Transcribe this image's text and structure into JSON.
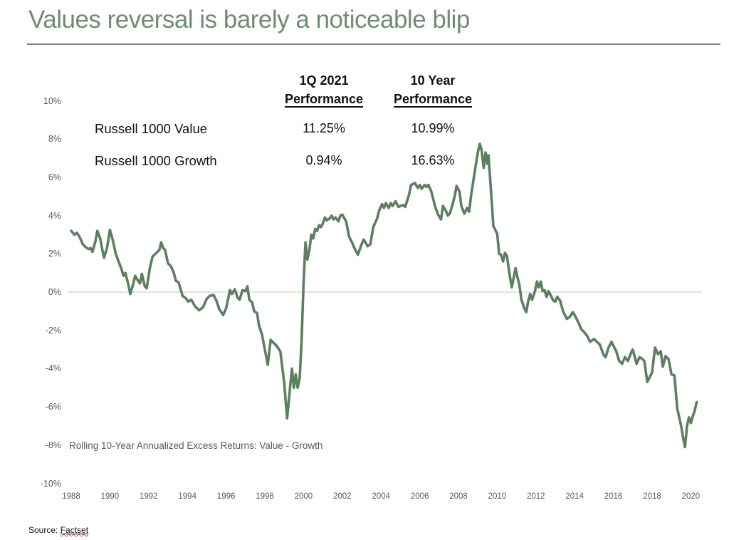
{
  "title": {
    "text": "Values reversal is barely a noticeable blip"
  },
  "comparison_table": {
    "columns": [
      {
        "line1": "1Q 2021",
        "line2": "Performance"
      },
      {
        "line1": "10 Year",
        "line2": "Performance"
      }
    ],
    "rows": [
      {
        "label": "Russell 1000 Value",
        "perf_1q2021": "11.25%",
        "perf_10yr": "10.99%"
      },
      {
        "label": "Russell 1000 Growth",
        "perf_1q2021": "0.94%",
        "perf_10yr": "16.63%"
      }
    ]
  },
  "chart_data": {
    "type": "line",
    "title": "",
    "annotation": "Rolling 10-Year Annualized Excess Returns:  Value - Growth",
    "xlabel": "",
    "ylabel": "",
    "x_ticks": [
      1988,
      1990,
      1992,
      1994,
      1996,
      1998,
      2000,
      2002,
      2004,
      2006,
      2008,
      2010,
      2012,
      2014,
      2016,
      2018,
      2020
    ],
    "y_tick_labels": [
      "10%",
      "8%",
      "6%",
      "4%",
      "2%",
      "0%",
      "-2%",
      "-4%",
      "-6%",
      "-8%",
      "-10%"
    ],
    "y_tick_values": [
      10,
      8,
      6,
      4,
      2,
      0,
      -2,
      -4,
      -6,
      -8,
      -10
    ],
    "ylim": [
      -10,
      10
    ],
    "xlim": [
      1988,
      2021
    ],
    "grid": "zero-line-only",
    "legend": "none",
    "series": [
      {
        "name": "Value - Growth rolling 10-year annualized excess return",
        "points": [
          [
            1988.0,
            3.2
          ],
          [
            1988.17,
            3.0
          ],
          [
            1988.3,
            3.1
          ],
          [
            1988.45,
            2.85
          ],
          [
            1988.6,
            2.5
          ],
          [
            1988.75,
            2.35
          ],
          [
            1988.9,
            2.25
          ],
          [
            1989.0,
            2.3
          ],
          [
            1989.1,
            2.1
          ],
          [
            1989.25,
            2.65
          ],
          [
            1989.35,
            3.2
          ],
          [
            1989.5,
            2.8
          ],
          [
            1989.6,
            2.25
          ],
          [
            1989.7,
            1.8
          ],
          [
            1989.85,
            2.3
          ],
          [
            1990.0,
            3.25
          ],
          [
            1990.15,
            2.7
          ],
          [
            1990.3,
            2.0
          ],
          [
            1990.45,
            1.6
          ],
          [
            1990.6,
            1.2
          ],
          [
            1990.7,
            0.85
          ],
          [
            1990.8,
            1.0
          ],
          [
            1990.95,
            0.4
          ],
          [
            1991.05,
            -0.1
          ],
          [
            1991.2,
            0.4
          ],
          [
            1991.3,
            0.85
          ],
          [
            1991.45,
            0.6
          ],
          [
            1991.55,
            0.45
          ],
          [
            1991.65,
            0.95
          ],
          [
            1991.8,
            0.3
          ],
          [
            1991.9,
            0.2
          ],
          [
            1992.05,
            1.2
          ],
          [
            1992.2,
            1.85
          ],
          [
            1992.4,
            2.05
          ],
          [
            1992.55,
            2.2
          ],
          [
            1992.65,
            2.6
          ],
          [
            1992.75,
            2.3
          ],
          [
            1992.85,
            2.2
          ],
          [
            1993.0,
            1.5
          ],
          [
            1993.15,
            1.35
          ],
          [
            1993.3,
            1.0
          ],
          [
            1993.4,
            0.6
          ],
          [
            1993.55,
            0.5
          ],
          [
            1993.75,
            -0.2
          ],
          [
            1993.9,
            -0.3
          ],
          [
            1994.05,
            -0.5
          ],
          [
            1994.2,
            -0.4
          ],
          [
            1994.4,
            -0.75
          ],
          [
            1994.6,
            -0.95
          ],
          [
            1994.8,
            -0.8
          ],
          [
            1995.0,
            -0.35
          ],
          [
            1995.15,
            -0.2
          ],
          [
            1995.35,
            -0.15
          ],
          [
            1995.5,
            -0.45
          ],
          [
            1995.65,
            -0.9
          ],
          [
            1995.85,
            -1.2
          ],
          [
            1996.0,
            -0.85
          ],
          [
            1996.2,
            0.1
          ],
          [
            1996.3,
            -0.1
          ],
          [
            1996.45,
            0.15
          ],
          [
            1996.6,
            -0.3
          ],
          [
            1996.7,
            -0.4
          ],
          [
            1996.85,
            0.1
          ],
          [
            1997.0,
            0.05
          ],
          [
            1997.1,
            0.3
          ],
          [
            1997.2,
            -0.4
          ],
          [
            1997.35,
            -0.55
          ],
          [
            1997.45,
            -1.0
          ],
          [
            1997.6,
            -1.1
          ],
          [
            1997.7,
            -1.75
          ],
          [
            1997.85,
            -2.2
          ],
          [
            1998.0,
            -3.0
          ],
          [
            1998.15,
            -3.8
          ],
          [
            1998.3,
            -2.5
          ],
          [
            1998.45,
            -2.65
          ],
          [
            1998.6,
            -2.8
          ],
          [
            1998.8,
            -3.1
          ],
          [
            1999.0,
            -4.75
          ],
          [
            1999.15,
            -6.6
          ],
          [
            1999.3,
            -5.0
          ],
          [
            1999.4,
            -4.0
          ],
          [
            1999.5,
            -5.0
          ],
          [
            1999.6,
            -4.3
          ],
          [
            1999.7,
            -5.0
          ],
          [
            1999.8,
            -4.5
          ],
          [
            1999.9,
            -2.5
          ],
          [
            2000.0,
            0.5
          ],
          [
            2000.1,
            2.6
          ],
          [
            2000.2,
            1.7
          ],
          [
            2000.3,
            2.2
          ],
          [
            2000.4,
            3.0
          ],
          [
            2000.5,
            2.8
          ],
          [
            2000.6,
            3.3
          ],
          [
            2000.7,
            3.2
          ],
          [
            2000.8,
            3.5
          ],
          [
            2000.9,
            3.4
          ],
          [
            2001.0,
            3.6
          ],
          [
            2001.1,
            3.9
          ],
          [
            2001.2,
            3.75
          ],
          [
            2001.35,
            3.85
          ],
          [
            2001.45,
            4.0
          ],
          [
            2001.55,
            3.8
          ],
          [
            2001.65,
            3.9
          ],
          [
            2001.8,
            3.7
          ],
          [
            2001.9,
            4.0
          ],
          [
            2002.0,
            4.05
          ],
          [
            2002.2,
            3.7
          ],
          [
            2002.35,
            2.9
          ],
          [
            2002.5,
            2.6
          ],
          [
            2002.65,
            2.25
          ],
          [
            2002.8,
            1.95
          ],
          [
            2003.0,
            2.5
          ],
          [
            2003.1,
            2.75
          ],
          [
            2003.2,
            2.6
          ],
          [
            2003.3,
            2.4
          ],
          [
            2003.45,
            2.5
          ],
          [
            2003.6,
            3.4
          ],
          [
            2003.8,
            3.85
          ],
          [
            2003.9,
            4.25
          ],
          [
            2004.05,
            4.6
          ],
          [
            2004.15,
            4.4
          ],
          [
            2004.25,
            4.65
          ],
          [
            2004.4,
            4.4
          ],
          [
            2004.5,
            4.65
          ],
          [
            2004.6,
            4.5
          ],
          [
            2004.75,
            4.75
          ],
          [
            2004.9,
            4.45
          ],
          [
            2005.0,
            4.5
          ],
          [
            2005.15,
            4.55
          ],
          [
            2005.25,
            4.45
          ],
          [
            2005.45,
            5.1
          ],
          [
            2005.55,
            5.6
          ],
          [
            2005.75,
            5.7
          ],
          [
            2005.9,
            5.45
          ],
          [
            2006.0,
            5.6
          ],
          [
            2006.1,
            5.4
          ],
          [
            2006.25,
            5.6
          ],
          [
            2006.35,
            5.5
          ],
          [
            2006.45,
            5.6
          ],
          [
            2006.6,
            5.25
          ],
          [
            2006.7,
            4.85
          ],
          [
            2006.8,
            4.45
          ],
          [
            2006.95,
            4.05
          ],
          [
            2007.1,
            3.8
          ],
          [
            2007.2,
            4.5
          ],
          [
            2007.35,
            4.25
          ],
          [
            2007.45,
            4.0
          ],
          [
            2007.55,
            4.1
          ],
          [
            2007.7,
            4.6
          ],
          [
            2007.8,
            5.0
          ],
          [
            2007.9,
            5.55
          ],
          [
            2008.05,
            5.25
          ],
          [
            2008.15,
            4.5
          ],
          [
            2008.3,
            4.1
          ],
          [
            2008.45,
            4.4
          ],
          [
            2008.55,
            4.2
          ],
          [
            2008.65,
            5.05
          ],
          [
            2008.85,
            6.35
          ],
          [
            2009.0,
            7.3
          ],
          [
            2009.1,
            7.75
          ],
          [
            2009.2,
            7.4
          ],
          [
            2009.3,
            6.5
          ],
          [
            2009.4,
            7.3
          ],
          [
            2009.5,
            6.7
          ],
          [
            2009.55,
            7.15
          ],
          [
            2009.7,
            5.0
          ],
          [
            2009.8,
            3.45
          ],
          [
            2009.9,
            3.25
          ],
          [
            2010.0,
            3.05
          ],
          [
            2010.1,
            2.0
          ],
          [
            2010.2,
            1.95
          ],
          [
            2010.3,
            1.6
          ],
          [
            2010.4,
            2.05
          ],
          [
            2010.5,
            1.9
          ],
          [
            2010.65,
            0.85
          ],
          [
            2010.75,
            0.25
          ],
          [
            2010.85,
            0.75
          ],
          [
            2010.95,
            1.25
          ],
          [
            2011.05,
            0.75
          ],
          [
            2011.15,
            0.35
          ],
          [
            2011.25,
            -0.4
          ],
          [
            2011.4,
            -0.85
          ],
          [
            2011.5,
            -1.05
          ],
          [
            2011.6,
            -0.5
          ],
          [
            2011.7,
            -0.1
          ],
          [
            2011.8,
            -0.4
          ],
          [
            2011.95,
            0.05
          ],
          [
            2012.05,
            0.55
          ],
          [
            2012.15,
            0.25
          ],
          [
            2012.25,
            0.55
          ],
          [
            2012.35,
            0.05
          ],
          [
            2012.45,
            0.1
          ],
          [
            2012.55,
            -0.25
          ],
          [
            2012.65,
            0.05
          ],
          [
            2012.75,
            -0.15
          ],
          [
            2012.9,
            -0.45
          ],
          [
            2013.0,
            -0.5
          ],
          [
            2013.1,
            -0.25
          ],
          [
            2013.25,
            -0.45
          ],
          [
            2013.4,
            -1.0
          ],
          [
            2013.5,
            -1.2
          ],
          [
            2013.6,
            -1.4
          ],
          [
            2013.75,
            -1.3
          ],
          [
            2013.9,
            -1.05
          ],
          [
            2014.0,
            -1.2
          ],
          [
            2014.2,
            -1.6
          ],
          [
            2014.35,
            -1.95
          ],
          [
            2014.5,
            -2.1
          ],
          [
            2014.65,
            -2.3
          ],
          [
            2014.8,
            -2.6
          ],
          [
            2015.0,
            -2.45
          ],
          [
            2015.15,
            -2.6
          ],
          [
            2015.3,
            -2.75
          ],
          [
            2015.5,
            -3.3
          ],
          [
            2015.6,
            -3.4
          ],
          [
            2015.75,
            -2.9
          ],
          [
            2015.9,
            -2.6
          ],
          [
            2016.0,
            -2.8
          ],
          [
            2016.15,
            -3.1
          ],
          [
            2016.3,
            -3.6
          ],
          [
            2016.45,
            -3.75
          ],
          [
            2016.6,
            -3.4
          ],
          [
            2016.75,
            -3.6
          ],
          [
            2016.9,
            -3.2
          ],
          [
            2017.0,
            -3.0
          ],
          [
            2017.2,
            -3.75
          ],
          [
            2017.35,
            -3.4
          ],
          [
            2017.5,
            -3.5
          ],
          [
            2017.6,
            -3.6
          ],
          [
            2017.75,
            -4.7
          ],
          [
            2017.9,
            -4.4
          ],
          [
            2018.0,
            -4.2
          ],
          [
            2018.15,
            -2.9
          ],
          [
            2018.3,
            -3.25
          ],
          [
            2018.45,
            -3.1
          ],
          [
            2018.55,
            -3.9
          ],
          [
            2018.7,
            -3.35
          ],
          [
            2018.85,
            -3.5
          ],
          [
            2019.0,
            -4.3
          ],
          [
            2019.15,
            -4.35
          ],
          [
            2019.3,
            -6.1
          ],
          [
            2019.5,
            -7.0
          ],
          [
            2019.6,
            -7.6
          ],
          [
            2019.7,
            -8.1
          ],
          [
            2019.8,
            -7.0
          ],
          [
            2019.9,
            -6.55
          ],
          [
            2020.0,
            -6.85
          ],
          [
            2020.1,
            -6.5
          ],
          [
            2020.2,
            -6.2
          ],
          [
            2020.3,
            -5.75
          ]
        ]
      }
    ]
  },
  "footer": {
    "source_prefix": "Source: ",
    "source_name": "Factset"
  },
  "colors": {
    "title_green": "#6e8d70",
    "line_green": "#5d7f5f",
    "axis_text": "#595959",
    "table_text": "#111111",
    "gridline": "#d9d9d9"
  }
}
